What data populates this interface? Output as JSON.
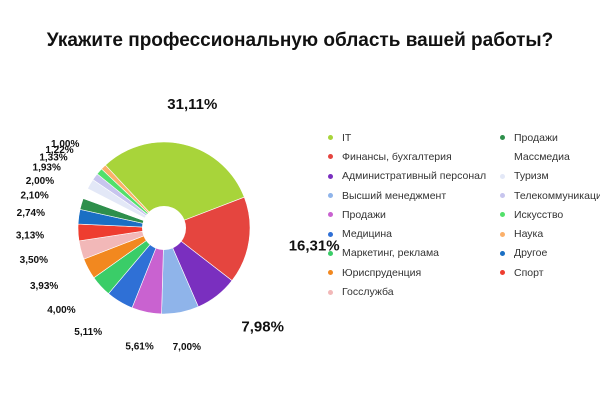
{
  "chart_data": {
    "type": "pie",
    "title": "Укажите профессиональную область вашей работы?",
    "donut": true,
    "slices": [
      {
        "name": "IT",
        "value": 31.11,
        "label": "31,11%",
        "color": "#a8d43a"
      },
      {
        "name": "Финансы, бухгалтерия",
        "value": 16.31,
        "label": "16,31%",
        "color": "#e5453f"
      },
      {
        "name": "Административный персонал",
        "value": 7.98,
        "label": "7,98%",
        "color": "#7a2fbf"
      },
      {
        "name": "Высший менеджмент",
        "value": 7.0,
        "label": "7,00%",
        "color": "#8fb4ea"
      },
      {
        "name": "Продажи",
        "value": 5.61,
        "label": "5,61%",
        "color": "#c962d0"
      },
      {
        "name": "Медицина",
        "value": 5.11,
        "label": "5,11%",
        "color": "#2f70d6"
      },
      {
        "name": "Маркетинг, реклама",
        "value": 4.0,
        "label": "4,00%",
        "color": "#3acd68"
      },
      {
        "name": "Юриспруденция",
        "value": 3.93,
        "label": "3,93%",
        "color": "#f2881f"
      },
      {
        "name": "Госслужба",
        "value": 3.5,
        "label": "3,50%",
        "color": "#f2b8b8"
      },
      {
        "name": "Спорт",
        "value": 3.13,
        "label": "3,13%",
        "color": "#ee3d2f"
      },
      {
        "name": "Другое",
        "value": 2.74,
        "label": "2,74%",
        "color": "#1a6fc4"
      },
      {
        "name": "Продажи",
        "value": 2.1,
        "label": "2,10%",
        "color": "#2e8f4b"
      },
      {
        "name": "Массмедиа",
        "value": 2.0,
        "label": "2,00%",
        "color": "#ffffff"
      },
      {
        "name": "Туризм",
        "value": 1.93,
        "label": "1,93%",
        "color": "#e3e8f7"
      },
      {
        "name": "Телекоммуникации",
        "value": 1.33,
        "label": "1,33%",
        "color": "#c7c5ee"
      },
      {
        "name": "Искусство",
        "value": 1.22,
        "label": "1,22%",
        "color": "#52e06a"
      },
      {
        "name": "Наука",
        "value": 1.0,
        "label": "1,00%",
        "color": "#fbb06a"
      }
    ],
    "legend": {
      "placement": "right",
      "left": [
        {
          "name": "IT",
          "color": "#a8d43a"
        },
        {
          "name": "Финансы, бухгалтерия",
          "color": "#e5453f"
        },
        {
          "name": "Административный персонал",
          "color": "#7a2fbf"
        },
        {
          "name": "Высший менеджмент",
          "color": "#8fb4ea"
        },
        {
          "name": "Продажи",
          "color": "#c962d0"
        },
        {
          "name": "Медицина",
          "color": "#2f70d6"
        },
        {
          "name": "Маркетинг, реклама",
          "color": "#3acd68"
        },
        {
          "name": "Юриспруденция",
          "color": "#f2881f"
        },
        {
          "name": "Госслужба",
          "color": "#f2b8b8"
        }
      ],
      "right": [
        {
          "name": "Продажи",
          "color": "#2e8f4b"
        },
        {
          "name": "Массмедиа",
          "color": "#ffffff"
        },
        {
          "name": "Туризм",
          "color": "#e3e8f7"
        },
        {
          "name": "Телекоммуникации",
          "color": "#c7c5ee"
        },
        {
          "name": "Искусство",
          "color": "#52e06a"
        },
        {
          "name": "Наука",
          "color": "#fbb06a"
        },
        {
          "name": "Другое",
          "color": "#1a6fc4"
        },
        {
          "name": "Спорт",
          "color": "#ee3d2f"
        }
      ]
    }
  }
}
